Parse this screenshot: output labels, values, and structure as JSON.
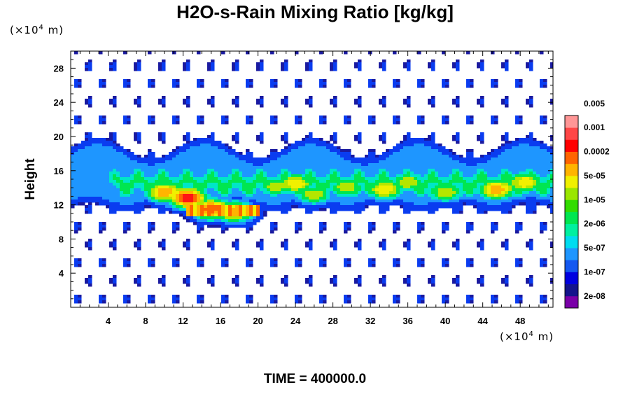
{
  "chart_data": {
    "type": "heatmap",
    "title": "H2O-s-Rain Mixing Ratio [kg/kg]",
    "ylabel": "Height",
    "xlabel": "",
    "unit_prefix": "(×10",
    "unit_exp": "4",
    "unit_suffix": " m)",
    "xlim": [
      0,
      51.5
    ],
    "ylim": [
      0,
      30
    ],
    "x_ticks": [
      4,
      8,
      12,
      16,
      20,
      24,
      28,
      32,
      36,
      40,
      44,
      48
    ],
    "x_tick_labels": [
      "4",
      "8",
      "12",
      "16",
      "20",
      "24",
      "28",
      "32",
      "36",
      "40",
      "44",
      "48"
    ],
    "y_ticks": [
      4,
      8,
      12,
      16,
      20,
      24,
      28
    ],
    "y_tick_labels": [
      "4",
      "8",
      "12",
      "16",
      "20",
      "24",
      "28"
    ],
    "colorbar": {
      "colors": [
        "#7a00a8",
        "#14148c",
        "#0000e0",
        "#1458f0",
        "#1e96ff",
        "#00dcf0",
        "#00f0a0",
        "#00e650",
        "#32dc00",
        "#9ae600",
        "#f0f000",
        "#ffb400",
        "#ff6400",
        "#ff0000",
        "#ff4646",
        "#ff9696"
      ],
      "labels": [
        "2e-08",
        "1e-07",
        "5e-07",
        "2e-06",
        "1e-05",
        "5e-05",
        "0.0002",
        "0.001",
        "0.005"
      ]
    },
    "layer_colors": [
      "#1a1aa0",
      "#0a3cf0",
      "#1e96ff",
      "#00e6c8",
      "#00e650",
      "#b4e600",
      "#f0f000",
      "#ffb400",
      "#ff6400",
      "#ff1414",
      "#ff8c8c"
    ],
    "features": [
      {
        "name": "upper-blue-band",
        "x": [
          0,
          51.5
        ],
        "y": [
          12.8,
          19.7
        ],
        "level": 1
      },
      {
        "name": "main-cyan-band",
        "x": [
          5,
          51.5
        ],
        "y": [
          12,
          17.5
        ],
        "level": 3
      },
      {
        "name": "strong-cell-left",
        "x": [
          7,
          18
        ],
        "y": [
          11,
          15.5
        ],
        "level": 9
      },
      {
        "name": "low-streak",
        "x": [
          13,
          20
        ],
        "y": [
          10.6,
          12
        ],
        "level": 8
      },
      {
        "name": "mid-cells",
        "x": [
          21,
          48
        ],
        "y": [
          12.5,
          17
        ],
        "level": 6
      }
    ],
    "cells": [
      {
        "x": 12.5,
        "y": 12.8,
        "peak": 10
      },
      {
        "x": 10.0,
        "y": 13.5,
        "peak": 8
      },
      {
        "x": 15.0,
        "y": 11.5,
        "peak": 9
      },
      {
        "x": 17.5,
        "y": 11.2,
        "peak": 8
      },
      {
        "x": 24.0,
        "y": 14.5,
        "peak": 7
      },
      {
        "x": 26.0,
        "y": 13.2,
        "peak": 6
      },
      {
        "x": 22.0,
        "y": 14.2,
        "peak": 6
      },
      {
        "x": 29.5,
        "y": 14.0,
        "peak": 6
      },
      {
        "x": 33.5,
        "y": 13.8,
        "peak": 7
      },
      {
        "x": 36.0,
        "y": 14.6,
        "peak": 6
      },
      {
        "x": 40.0,
        "y": 13.5,
        "peak": 6
      },
      {
        "x": 45.5,
        "y": 13.8,
        "peak": 8
      },
      {
        "x": 48.5,
        "y": 14.6,
        "peak": 7
      }
    ]
  },
  "time_label": "TIME = 400000.0"
}
